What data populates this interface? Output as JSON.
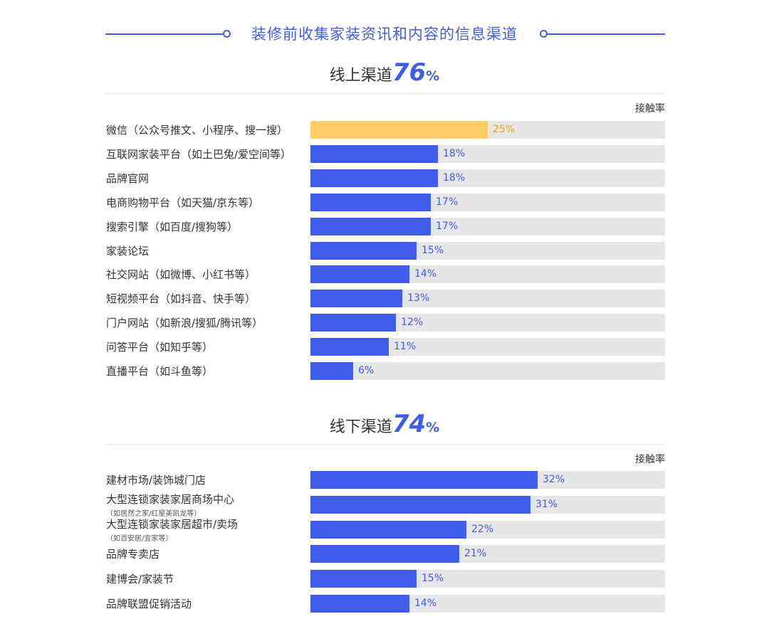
{
  "title": "装修前收集家装资讯和内容的信息渠道",
  "chart_data": [
    {
      "type": "bar",
      "orientation": "horizontal",
      "title": "线上渠道",
      "total_value": "76",
      "total_suffix": "%",
      "value_header": "接触率",
      "xlim": [
        0,
        50
      ],
      "categories": [
        {
          "label": "微信（公众号推文、小程序、搜一搜）",
          "sub": "",
          "value": 25,
          "display": "25%",
          "highlight": true
        },
        {
          "label": "互联网家装平台（如土巴兔/爱空间等）",
          "sub": "",
          "value": 18,
          "display": "18%",
          "highlight": false
        },
        {
          "label": "品牌官网",
          "sub": "",
          "value": 18,
          "display": "18%",
          "highlight": false
        },
        {
          "label": "电商购物平台（如天猫/京东等）",
          "sub": "",
          "value": 17,
          "display": "17%",
          "highlight": false
        },
        {
          "label": "搜索引擎（如百度/搜狗等）",
          "sub": "",
          "value": 17,
          "display": "17%",
          "highlight": false
        },
        {
          "label": "家装论坛",
          "sub": "",
          "value": 15,
          "display": "15%",
          "highlight": false
        },
        {
          "label": "社交网站（如微博、小红书等）",
          "sub": "",
          "value": 14,
          "display": "14%",
          "highlight": false
        },
        {
          "label": "短视频平台（如抖音、快手等）",
          "sub": "",
          "value": 13,
          "display": "13%",
          "highlight": false
        },
        {
          "label": "门户网站（如新浪/搜狐/腾讯等）",
          "sub": "",
          "value": 12,
          "display": "12%",
          "highlight": false
        },
        {
          "label": "问答平台（如知乎等）",
          "sub": "",
          "value": 11,
          "display": "11%",
          "highlight": false
        },
        {
          "label": "直播平台（如斗鱼等）",
          "sub": "",
          "value": 6,
          "display": "6%",
          "highlight": false
        }
      ]
    },
    {
      "type": "bar",
      "orientation": "horizontal",
      "title": "线下渠道",
      "total_value": "74",
      "total_suffix": "%",
      "value_header": "接触率",
      "xlim": [
        0,
        50
      ],
      "categories": [
        {
          "label": "建材市场/装饰城门店",
          "sub": "",
          "value": 32,
          "display": "32%",
          "highlight": false
        },
        {
          "label": "大型连锁家装家居商场中心",
          "sub": "（如居然之家/红星美凯龙等）",
          "value": 31,
          "display": "31%",
          "highlight": false
        },
        {
          "label": "大型连锁家装家居超市/卖场",
          "sub": "（如百安居/宜家等）",
          "value": 22,
          "display": "22%",
          "highlight": false
        },
        {
          "label": "品牌专卖店",
          "sub": "",
          "value": 21,
          "display": "21%",
          "highlight": false
        },
        {
          "label": "建博会/家装节",
          "sub": "",
          "value": 15,
          "display": "15%",
          "highlight": false
        },
        {
          "label": "品牌联盟促销活动",
          "sub": "",
          "value": 14,
          "display": "14%",
          "highlight": false
        }
      ]
    }
  ]
}
